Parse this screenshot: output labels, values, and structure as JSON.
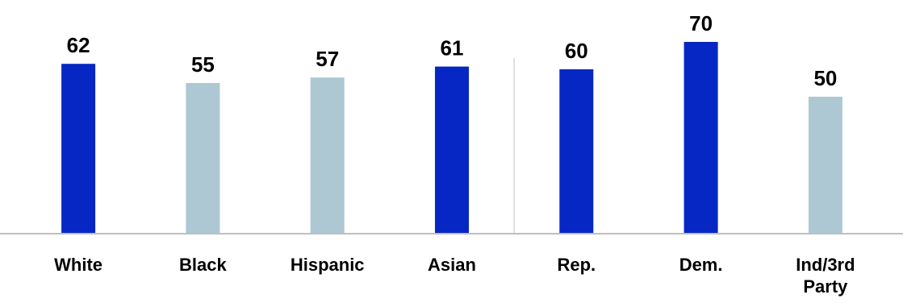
{
  "chart_data": {
    "type": "bar",
    "title": "",
    "xlabel": "",
    "ylabel": "",
    "ylim": [
      0,
      80
    ],
    "grid": false,
    "legend": "none",
    "categories": [
      "White",
      "Black",
      "Hispanic",
      "Asian",
      "Rep.",
      "Dem.",
      "Ind/3rd Party"
    ],
    "category_lines": [
      [
        "White"
      ],
      [
        "Black"
      ],
      [
        "Hispanic"
      ],
      [
        "Asian"
      ],
      [
        "Rep."
      ],
      [
        "Dem."
      ],
      [
        "Ind/3rd",
        "Party"
      ]
    ],
    "values": [
      62,
      55,
      57,
      61,
      60,
      70,
      50
    ],
    "value_labels": [
      "62",
      "55",
      "57",
      "61",
      "60",
      "70",
      "50"
    ],
    "bar_colors": [
      "#0627c4",
      "#adc8d2",
      "#adc8d2",
      "#0627c4",
      "#0627c4",
      "#0627c4",
      "#adc8d2"
    ],
    "group_divider_after_index": 3,
    "colors": {
      "axis": "#bfbfbf",
      "divider": "#d9d9d9"
    }
  }
}
